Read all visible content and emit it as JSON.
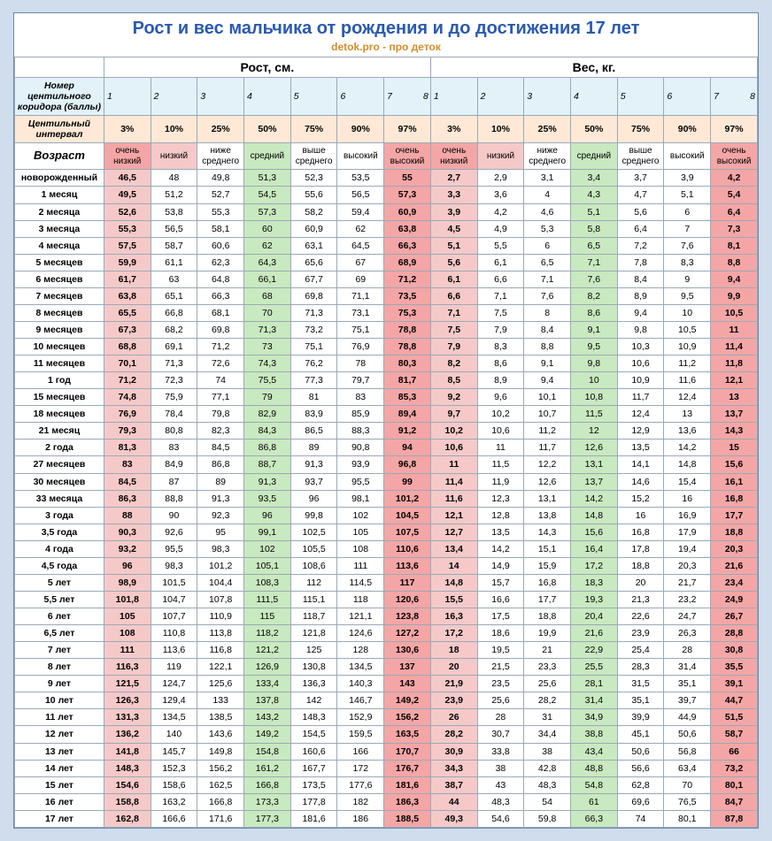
{
  "title": "Рост и вес мальчика от рождения и до достижения 17 лет",
  "subtitle": "detok.pro - про деток",
  "section_labels": {
    "height": "Рост, см.",
    "weight": "Вес, кг."
  },
  "row_labels": {
    "corridor": "Номер центильного коридора (баллы)",
    "centile": "Центильный интервал",
    "age": "Возраст"
  },
  "corridor_numbers": [
    "1",
    "2",
    "3",
    "4",
    "5",
    "6",
    "7",
    "8"
  ],
  "centiles": [
    "3%",
    "10%",
    "25%",
    "50%",
    "75%",
    "90%",
    "97%"
  ],
  "quality_labels": [
    "очень низкий",
    "низкий",
    "ниже среднего",
    "средний",
    "выше среднего",
    "высокий",
    "очень высокий"
  ],
  "quality_classes": [
    "q-red",
    "q-pink",
    "q-white",
    "q-green",
    "q-white",
    "q-white",
    "q-red"
  ],
  "data_classes": [
    "v1",
    "v2",
    "v3",
    "v4",
    "v5",
    "v6",
    "v7"
  ],
  "rows": [
    {
      "age": "новорожденный",
      "h": [
        "46,5",
        "48",
        "49,8",
        "51,3",
        "52,3",
        "53,5",
        "55"
      ],
      "w": [
        "2,7",
        "2,9",
        "3,1",
        "3,4",
        "3,7",
        "3,9",
        "4,2"
      ]
    },
    {
      "age": "1 месяц",
      "h": [
        "49,5",
        "51,2",
        "52,7",
        "54,5",
        "55,6",
        "56,5",
        "57,3"
      ],
      "w": [
        "3,3",
        "3,6",
        "4",
        "4,3",
        "4,7",
        "5,1",
        "5,4"
      ]
    },
    {
      "age": "2 месяца",
      "h": [
        "52,6",
        "53,8",
        "55,3",
        "57,3",
        "58,2",
        "59,4",
        "60,9"
      ],
      "w": [
        "3,9",
        "4,2",
        "4,6",
        "5,1",
        "5,6",
        "6",
        "6,4"
      ]
    },
    {
      "age": "3 месяца",
      "h": [
        "55,3",
        "56,5",
        "58,1",
        "60",
        "60,9",
        "62",
        "63,8"
      ],
      "w": [
        "4,5",
        "4,9",
        "5,3",
        "5,8",
        "6,4",
        "7",
        "7,3"
      ]
    },
    {
      "age": "4 месяца",
      "h": [
        "57,5",
        "58,7",
        "60,6",
        "62",
        "63,1",
        "64,5",
        "66,3"
      ],
      "w": [
        "5,1",
        "5,5",
        "6",
        "6,5",
        "7,2",
        "7,6",
        "8,1"
      ]
    },
    {
      "age": "5 месяцев",
      "h": [
        "59,9",
        "61,1",
        "62,3",
        "64,3",
        "65,6",
        "67",
        "68,9"
      ],
      "w": [
        "5,6",
        "6,1",
        "6,5",
        "7,1",
        "7,8",
        "8,3",
        "8,8"
      ]
    },
    {
      "age": "6 месяцев",
      "h": [
        "61,7",
        "63",
        "64,8",
        "66,1",
        "67,7",
        "69",
        "71,2"
      ],
      "w": [
        "6,1",
        "6,6",
        "7,1",
        "7,6",
        "8,4",
        "9",
        "9,4"
      ]
    },
    {
      "age": "7 месяцев",
      "h": [
        "63,8",
        "65,1",
        "66,3",
        "68",
        "69,8",
        "71,1",
        "73,5"
      ],
      "w": [
        "6,6",
        "7,1",
        "7,6",
        "8,2",
        "8,9",
        "9,5",
        "9,9"
      ]
    },
    {
      "age": "8 месяцев",
      "h": [
        "65,5",
        "66,8",
        "68,1",
        "70",
        "71,3",
        "73,1",
        "75,3"
      ],
      "w": [
        "7,1",
        "7,5",
        "8",
        "8,6",
        "9,4",
        "10",
        "10,5"
      ]
    },
    {
      "age": "9 месяцев",
      "h": [
        "67,3",
        "68,2",
        "69,8",
        "71,3",
        "73,2",
        "75,1",
        "78,8"
      ],
      "w": [
        "7,5",
        "7,9",
        "8,4",
        "9,1",
        "9,8",
        "10,5",
        "11"
      ]
    },
    {
      "age": "10 месяцев",
      "h": [
        "68,8",
        "69,1",
        "71,2",
        "73",
        "75,1",
        "76,9",
        "78,8"
      ],
      "w": [
        "7,9",
        "8,3",
        "8,8",
        "9,5",
        "10,3",
        "10,9",
        "11,4"
      ]
    },
    {
      "age": "11 месяцев",
      "h": [
        "70,1",
        "71,3",
        "72,6",
        "74,3",
        "76,2",
        "78",
        "80,3"
      ],
      "w": [
        "8,2",
        "8,6",
        "9,1",
        "9,8",
        "10,6",
        "11,2",
        "11,8"
      ]
    },
    {
      "age": "1 год",
      "h": [
        "71,2",
        "72,3",
        "74",
        "75,5",
        "77,3",
        "79,7",
        "81,7"
      ],
      "w": [
        "8,5",
        "8,9",
        "9,4",
        "10",
        "10,9",
        "11,6",
        "12,1"
      ]
    },
    {
      "age": "15 месяцев",
      "h": [
        "74,8",
        "75,9",
        "77,1",
        "79",
        "81",
        "83",
        "85,3"
      ],
      "w": [
        "9,2",
        "9,6",
        "10,1",
        "10,8",
        "11,7",
        "12,4",
        "13"
      ]
    },
    {
      "age": "18 месяцев",
      "h": [
        "76,9",
        "78,4",
        "79,8",
        "82,9",
        "83,9",
        "85,9",
        "89,4"
      ],
      "w": [
        "9,7",
        "10,2",
        "10,7",
        "11,5",
        "12,4",
        "13",
        "13,7"
      ]
    },
    {
      "age": "21 месяц",
      "h": [
        "79,3",
        "80,8",
        "82,3",
        "84,3",
        "86,5",
        "88,3",
        "91,2"
      ],
      "w": [
        "10,2",
        "10,6",
        "11,2",
        "12",
        "12,9",
        "13,6",
        "14,3"
      ]
    },
    {
      "age": "2 года",
      "h": [
        "81,3",
        "83",
        "84,5",
        "86,8",
        "89",
        "90,8",
        "94"
      ],
      "w": [
        "10,6",
        "11",
        "11,7",
        "12,6",
        "13,5",
        "14,2",
        "15"
      ]
    },
    {
      "age": "27 месяцев",
      "h": [
        "83",
        "84,9",
        "86,8",
        "88,7",
        "91,3",
        "93,9",
        "96,8"
      ],
      "w": [
        "11",
        "11,5",
        "12,2",
        "13,1",
        "14,1",
        "14,8",
        "15,6"
      ]
    },
    {
      "age": "30 месяцев",
      "h": [
        "84,5",
        "87",
        "89",
        "91,3",
        "93,7",
        "95,5",
        "99"
      ],
      "w": [
        "11,4",
        "11,9",
        "12,6",
        "13,7",
        "14,6",
        "15,4",
        "16,1"
      ]
    },
    {
      "age": "33 месяца",
      "h": [
        "86,3",
        "88,8",
        "91,3",
        "93,5",
        "96",
        "98,1",
        "101,2"
      ],
      "w": [
        "11,6",
        "12,3",
        "13,1",
        "14,2",
        "15,2",
        "16",
        "16,8"
      ]
    },
    {
      "age": "3 года",
      "h": [
        "88",
        "90",
        "92,3",
        "96",
        "99,8",
        "102",
        "104,5"
      ],
      "w": [
        "12,1",
        "12,8",
        "13,8",
        "14,8",
        "16",
        "16,9",
        "17,7"
      ]
    },
    {
      "age": "3,5 года",
      "h": [
        "90,3",
        "92,6",
        "95",
        "99,1",
        "102,5",
        "105",
        "107,5"
      ],
      "w": [
        "12,7",
        "13,5",
        "14,3",
        "15,6",
        "16,8",
        "17,9",
        "18,8"
      ]
    },
    {
      "age": "4 года",
      "h": [
        "93,2",
        "95,5",
        "98,3",
        "102",
        "105,5",
        "108",
        "110,6"
      ],
      "w": [
        "13,4",
        "14,2",
        "15,1",
        "16,4",
        "17,8",
        "19,4",
        "20,3"
      ]
    },
    {
      "age": "4,5 года",
      "h": [
        "96",
        "98,3",
        "101,2",
        "105,1",
        "108,6",
        "111",
        "113,6"
      ],
      "w": [
        "14",
        "14,9",
        "15,9",
        "17,2",
        "18,8",
        "20,3",
        "21,6"
      ]
    },
    {
      "age": "5 лет",
      "h": [
        "98,9",
        "101,5",
        "104,4",
        "108,3",
        "112",
        "114,5",
        "117"
      ],
      "w": [
        "14,8",
        "15,7",
        "16,8",
        "18,3",
        "20",
        "21,7",
        "23,4"
      ]
    },
    {
      "age": "5,5 лет",
      "h": [
        "101,8",
        "104,7",
        "107,8",
        "111,5",
        "115,1",
        "118",
        "120,6"
      ],
      "w": [
        "15,5",
        "16,6",
        "17,7",
        "19,3",
        "21,3",
        "23,2",
        "24,9"
      ]
    },
    {
      "age": "6 лет",
      "h": [
        "105",
        "107,7",
        "110,9",
        "115",
        "118,7",
        "121,1",
        "123,8"
      ],
      "w": [
        "16,3",
        "17,5",
        "18,8",
        "20,4",
        "22,6",
        "24,7",
        "26,7"
      ]
    },
    {
      "age": "6,5 лет",
      "h": [
        "108",
        "110,8",
        "113,8",
        "118,2",
        "121,8",
        "124,6",
        "127,2"
      ],
      "w": [
        "17,2",
        "18,6",
        "19,9",
        "21,6",
        "23,9",
        "26,3",
        "28,8"
      ]
    },
    {
      "age": "7 лет",
      "h": [
        "111",
        "113,6",
        "116,8",
        "121,2",
        "125",
        "128",
        "130,6"
      ],
      "w": [
        "18",
        "19,5",
        "21",
        "22,9",
        "25,4",
        "28",
        "30,8"
      ]
    },
    {
      "age": "8 лет",
      "h": [
        "116,3",
        "119",
        "122,1",
        "126,9",
        "130,8",
        "134,5",
        "137"
      ],
      "w": [
        "20",
        "21,5",
        "23,3",
        "25,5",
        "28,3",
        "31,4",
        "35,5"
      ]
    },
    {
      "age": "9 лет",
      "h": [
        "121,5",
        "124,7",
        "125,6",
        "133,4",
        "136,3",
        "140,3",
        "143"
      ],
      "w": [
        "21,9",
        "23,5",
        "25,6",
        "28,1",
        "31,5",
        "35,1",
        "39,1"
      ]
    },
    {
      "age": "10 лет",
      "h": [
        "126,3",
        "129,4",
        "133",
        "137,8",
        "142",
        "146,7",
        "149,2"
      ],
      "w": [
        "23,9",
        "25,6",
        "28,2",
        "31,4",
        "35,1",
        "39,7",
        "44,7"
      ]
    },
    {
      "age": "11 лет",
      "h": [
        "131,3",
        "134,5",
        "138,5",
        "143,2",
        "148,3",
        "152,9",
        "156,2"
      ],
      "w": [
        "26",
        "28",
        "31",
        "34,9",
        "39,9",
        "44,9",
        "51,5"
      ]
    },
    {
      "age": "12 лет",
      "h": [
        "136,2",
        "140",
        "143,6",
        "149,2",
        "154,5",
        "159,5",
        "163,5"
      ],
      "w": [
        "28,2",
        "30,7",
        "34,4",
        "38,8",
        "45,1",
        "50,6",
        "58,7"
      ]
    },
    {
      "age": "13 лет",
      "h": [
        "141,8",
        "145,7",
        "149,8",
        "154,8",
        "160,6",
        "166",
        "170,7"
      ],
      "w": [
        "30,9",
        "33,8",
        "38",
        "43,4",
        "50,6",
        "56,8",
        "66"
      ]
    },
    {
      "age": "14 лет",
      "h": [
        "148,3",
        "152,3",
        "156,2",
        "161,2",
        "167,7",
        "172",
        "176,7"
      ],
      "w": [
        "34,3",
        "38",
        "42,8",
        "48,8",
        "56,6",
        "63,4",
        "73,2"
      ]
    },
    {
      "age": "15 лет",
      "h": [
        "154,6",
        "158,6",
        "162,5",
        "166,8",
        "173,5",
        "177,6",
        "181,6"
      ],
      "w": [
        "38,7",
        "43",
        "48,3",
        "54,8",
        "62,8",
        "70",
        "80,1"
      ]
    },
    {
      "age": "16 лет",
      "h": [
        "158,8",
        "163,2",
        "166,8",
        "173,3",
        "177,8",
        "182",
        "186,3"
      ],
      "w": [
        "44",
        "48,3",
        "54",
        "61",
        "69,6",
        "76,5",
        "84,7"
      ]
    },
    {
      "age": "17 лет",
      "h": [
        "162,8",
        "166,6",
        "171,6",
        "177,3",
        "181,6",
        "186",
        "188,5"
      ],
      "w": [
        "49,3",
        "54,6",
        "59,8",
        "66,3",
        "74",
        "80,1",
        "87,8"
      ]
    }
  ]
}
